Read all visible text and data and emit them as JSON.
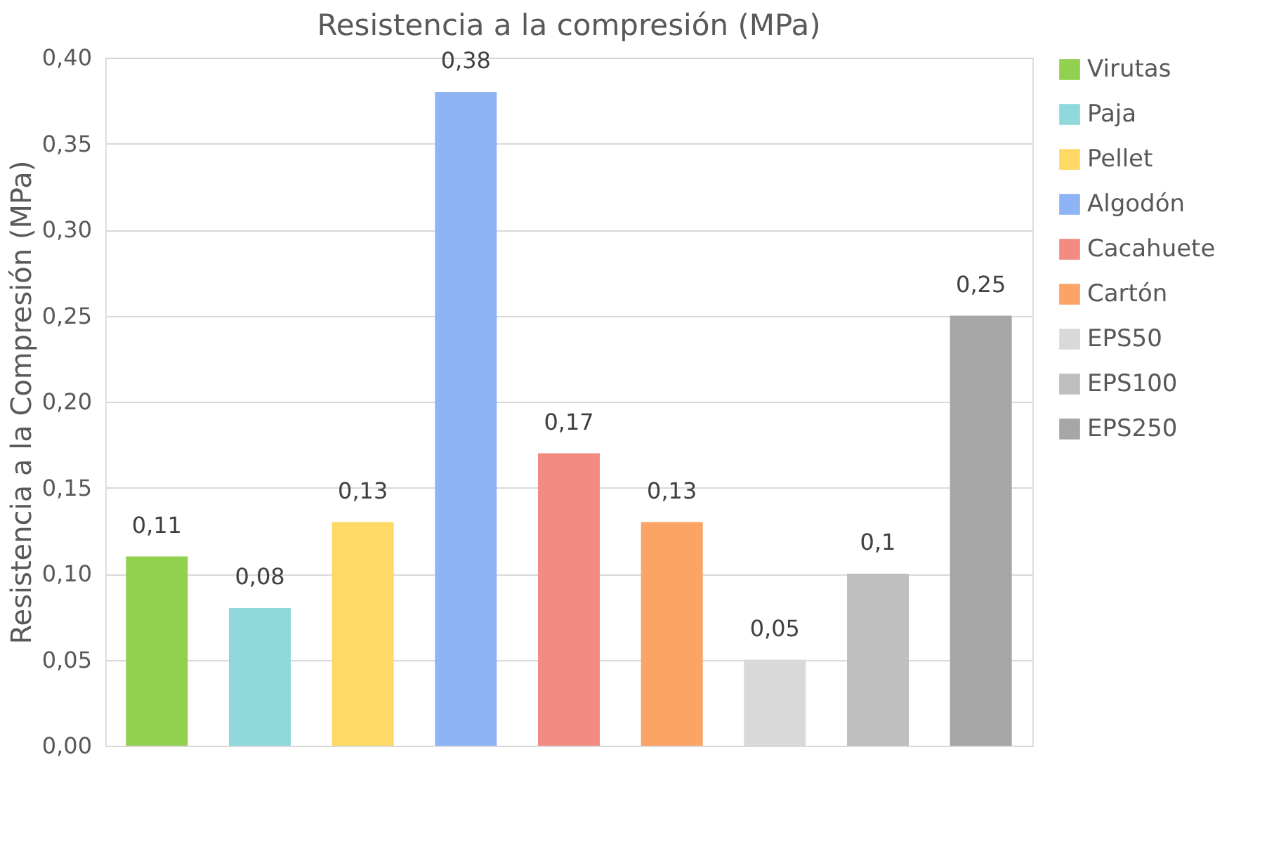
{
  "chart_data": {
    "type": "bar",
    "title": "Resistencia a la compresión (MPa)",
    "ylabel": "Resistencia a la Compresión (MPa)",
    "categories": [
      null,
      null,
      null,
      null,
      null,
      null,
      null,
      null,
      null
    ],
    "series": [
      {
        "name": "Virutas",
        "color": "#92d050",
        "values": [
          0.11,
          null,
          null,
          null,
          null,
          null,
          null,
          null,
          null
        ],
        "value_labels": [
          "0,11",
          null,
          null,
          null,
          null,
          null,
          null,
          null,
          null
        ]
      },
      {
        "name": "Paja",
        "color": "#8fd8dc",
        "values": [
          null,
          0.08,
          null,
          null,
          null,
          null,
          null,
          null,
          null
        ],
        "value_labels": [
          null,
          "0,08",
          null,
          null,
          null,
          null,
          null,
          null,
          null
        ]
      },
      {
        "name": "Pellet",
        "color": "#ffd966",
        "values": [
          null,
          null,
          0.13,
          null,
          null,
          null,
          null,
          null,
          null
        ],
        "value_labels": [
          null,
          null,
          "0,13",
          null,
          null,
          null,
          null,
          null,
          null
        ]
      },
      {
        "name": "Algodón",
        "color": "#8fb4f5",
        "values": [
          null,
          null,
          null,
          0.38,
          null,
          null,
          null,
          null,
          null
        ],
        "value_labels": [
          null,
          null,
          null,
          "0,38",
          null,
          null,
          null,
          null,
          null
        ]
      },
      {
        "name": "Cacahuete",
        "color": "#f28b82",
        "values": [
          null,
          null,
          null,
          null,
          0.17,
          null,
          null,
          null,
          null
        ],
        "value_labels": [
          null,
          null,
          null,
          null,
          "0,17",
          null,
          null,
          null,
          null
        ]
      },
      {
        "name": "Cartón",
        "color": "#fba465",
        "values": [
          null,
          null,
          null,
          null,
          null,
          0.13,
          null,
          null,
          null
        ],
        "value_labels": [
          null,
          null,
          null,
          null,
          null,
          "0,13",
          null,
          null,
          null
        ]
      },
      {
        "name": "EPS50",
        "color": "#d9d9d9",
        "values": [
          null,
          null,
          null,
          null,
          null,
          null,
          0.05,
          null,
          null
        ],
        "value_labels": [
          null,
          null,
          null,
          null,
          null,
          null,
          "0,05",
          null,
          null
        ]
      },
      {
        "name": "EPS100",
        "color": "#bfbfbf",
        "values": [
          null,
          null,
          null,
          null,
          null,
          null,
          null,
          0.1,
          null
        ],
        "value_labels": [
          null,
          null,
          null,
          null,
          null,
          null,
          null,
          "0,1",
          null
        ]
      },
      {
        "name": "EPS250",
        "color": "#a6a6a6",
        "values": [
          null,
          null,
          null,
          null,
          null,
          null,
          null,
          null,
          0.25
        ],
        "value_labels": [
          null,
          null,
          null,
          null,
          null,
          null,
          null,
          null,
          "0,25"
        ]
      }
    ],
    "ylim": [
      0,
      0.4
    ],
    "yticks": [
      {
        "value": 0,
        "label": "0,00"
      },
      {
        "value": 0.05,
        "label": "0,05"
      },
      {
        "value": 0.1,
        "label": "0,10"
      },
      {
        "value": 0.15,
        "label": "0,15"
      },
      {
        "value": 0.2,
        "label": "0,20"
      },
      {
        "value": 0.25,
        "label": "0,25"
      },
      {
        "value": 0.3,
        "label": "0,30"
      },
      {
        "value": 0.35,
        "label": "0,35"
      },
      {
        "value": 0.4,
        "label": "0,40"
      }
    ],
    "grid": "y",
    "legend": "right"
  }
}
